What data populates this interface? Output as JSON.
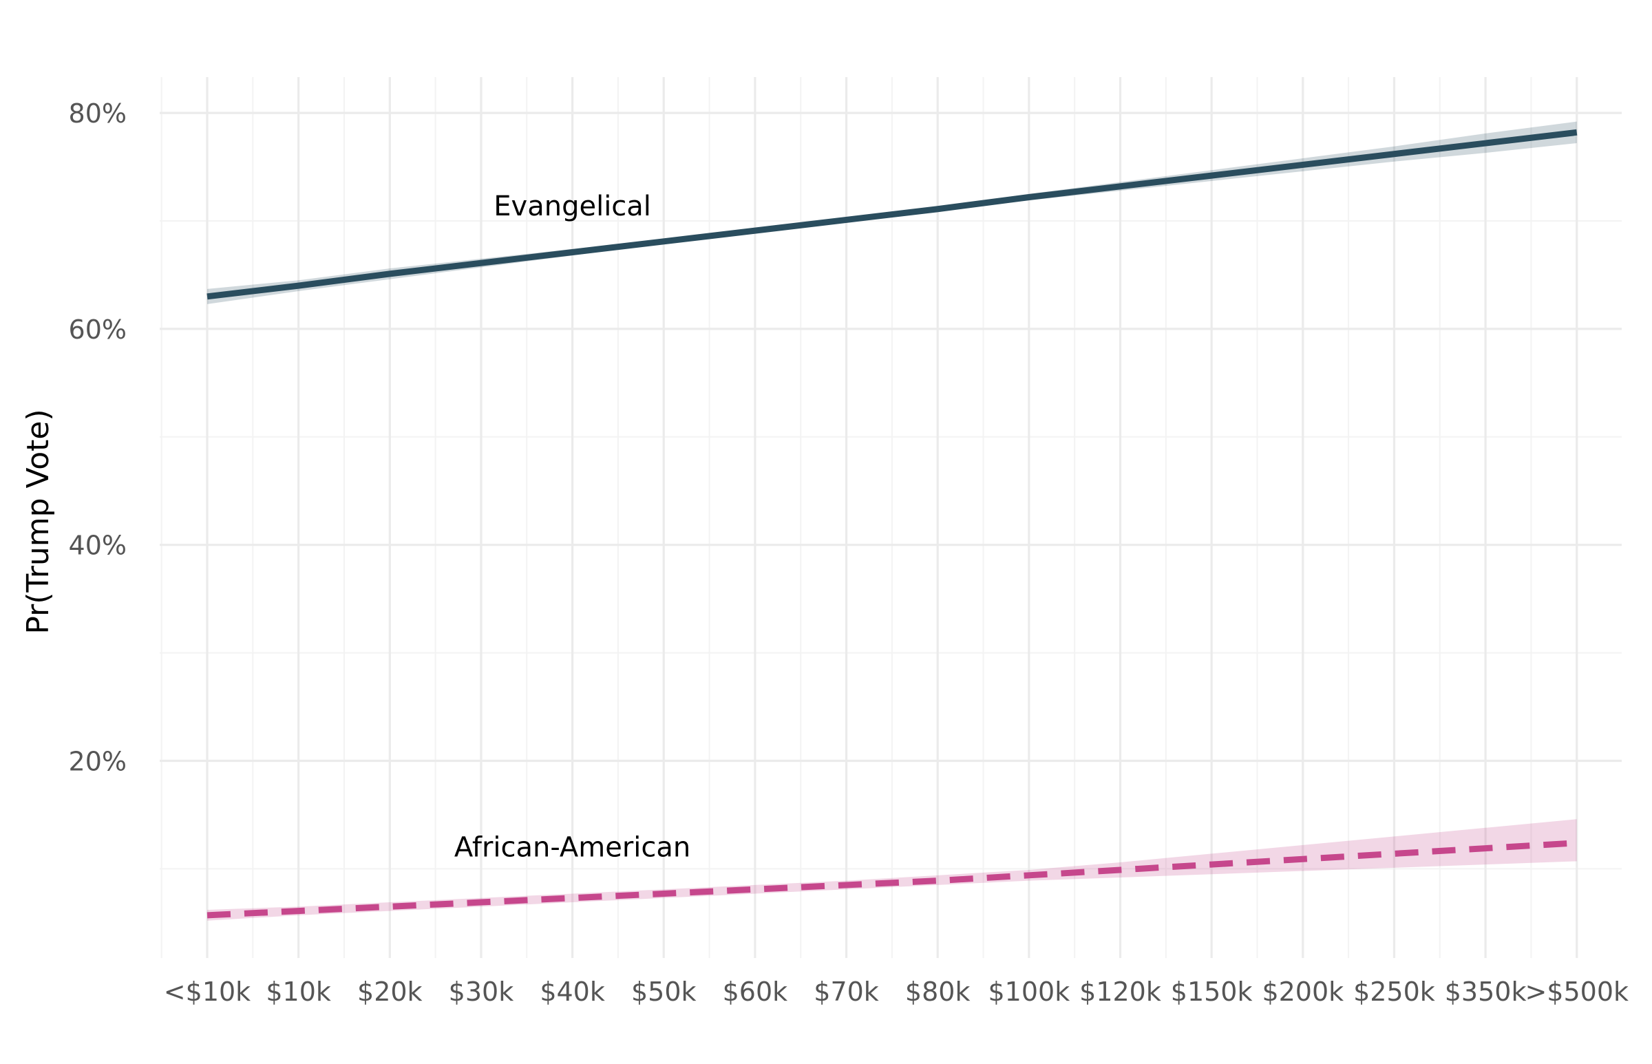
{
  "chart_data": {
    "type": "line",
    "title": "",
    "xlabel": "",
    "ylabel": "Pr(Trump Vote)",
    "categories": [
      "<$10k",
      "$10k",
      "$20k",
      "$30k",
      "$40k",
      "$50k",
      "$60k",
      "$70k",
      "$80k",
      "$100k",
      "$120k",
      "$150k",
      "$200k",
      "$250k",
      "$350k",
      ">$500k"
    ],
    "ylim": [
      2,
      83
    ],
    "yticks": [
      20,
      40,
      60,
      80
    ],
    "ytick_labels": [
      "20%",
      "40%",
      "60%",
      "80%"
    ],
    "grid": true,
    "legend": "none",
    "series": [
      {
        "name": "Evangelical",
        "color": "#2a4d5e",
        "dash": "solid",
        "values": [
          63.0,
          64.0,
          65.1,
          66.1,
          67.1,
          68.1,
          69.1,
          70.1,
          71.1,
          72.2,
          73.2,
          74.2,
          75.2,
          76.2,
          77.2,
          78.2
        ],
        "lower": [
          62.3,
          63.5,
          64.6,
          65.7,
          66.8,
          67.9,
          68.9,
          69.9,
          70.9,
          71.9,
          72.8,
          73.7,
          74.6,
          75.5,
          76.3,
          77.2
        ],
        "upper": [
          63.7,
          64.5,
          65.6,
          66.5,
          67.4,
          68.3,
          69.3,
          70.3,
          71.3,
          72.5,
          73.6,
          74.7,
          75.8,
          76.9,
          78.1,
          79.2
        ]
      },
      {
        "name": "African-American",
        "color": "#c6478c",
        "dash": "dashed",
        "values": [
          5.7,
          6.1,
          6.5,
          6.9,
          7.3,
          7.7,
          8.1,
          8.5,
          8.9,
          9.4,
          9.9,
          10.4,
          10.9,
          11.4,
          11.9,
          12.4
        ],
        "lower": [
          5.2,
          5.7,
          6.1,
          6.5,
          6.9,
          7.3,
          7.7,
          8.1,
          8.5,
          8.9,
          9.2,
          9.5,
          9.8,
          10.1,
          10.4,
          10.7
        ],
        "upper": [
          6.2,
          6.5,
          6.9,
          7.3,
          7.7,
          8.1,
          8.5,
          8.9,
          9.4,
          9.9,
          10.6,
          11.4,
          12.2,
          13.0,
          13.8,
          14.6
        ]
      }
    ],
    "annotations": [
      {
        "text": "Evangelical",
        "x_index": 4,
        "y": 70.0
      },
      {
        "text": "African-American",
        "x_index": 4,
        "y": 10.0
      }
    ]
  }
}
